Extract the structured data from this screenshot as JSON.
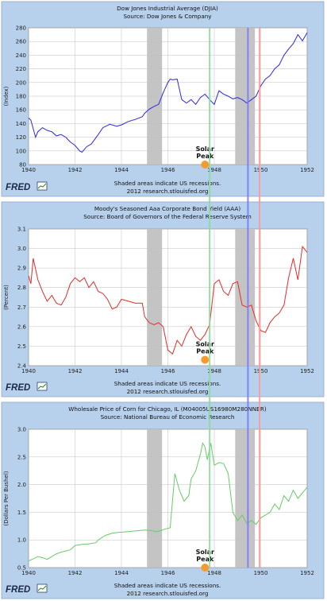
{
  "annotations": {
    "solar_peak_line1": "Solar",
    "solar_peak_line2": "Peak"
  },
  "colors": {
    "panel_background": "#b7d0ec",
    "recession_shading": "#c4c4c4",
    "djia_line": "#2a2ae6",
    "bond_line": "#e62a2a",
    "corn_line": "#66cc66",
    "green_vline": "#88dd99",
    "blue_vline": "#7a7aff",
    "red_vline": "#ff9a9a",
    "solar_dot": "#f59a2e"
  },
  "chart_data": [
    {
      "type": "line",
      "title": "Dow Jones Industrial Average (DJIA)",
      "subtitle": "Source: Dow Jones & Company",
      "ylabel": "(Index)",
      "xlabel": "",
      "xlim": [
        1940,
        1952
      ],
      "ylim": [
        80,
        280
      ],
      "x_ticks": [
        1940,
        1942,
        1944,
        1946,
        1948,
        1950,
        1952
      ],
      "y_ticks": [
        80,
        100,
        120,
        140,
        160,
        180,
        200,
        220,
        240,
        260,
        280
      ],
      "grid": true,
      "recessions": [
        [
          1945.1,
          1945.75
        ],
        [
          1948.9,
          1949.75
        ]
      ],
      "note_line1": "Shaded areas indicate US recessions.",
      "note_line2": "2012 research.stlouisfed.org",
      "solar_peak": {
        "x": 1947.6,
        "y": 80
      },
      "series": [
        {
          "x": [
            1940.0,
            1940.1,
            1940.3,
            1940.4,
            1940.6,
            1940.8,
            1941.0,
            1941.2,
            1941.4,
            1941.6,
            1941.8,
            1942.0,
            1942.2,
            1942.3,
            1942.5,
            1942.7,
            1943.0,
            1943.2,
            1943.5,
            1943.8,
            1944.0,
            1944.3,
            1944.6,
            1944.9,
            1945.0,
            1945.2,
            1945.4,
            1945.6,
            1945.8,
            1946.0,
            1946.1,
            1946.2,
            1946.4,
            1946.6,
            1946.8,
            1947.0,
            1947.2,
            1947.4,
            1947.6,
            1947.8,
            1948.0,
            1948.2,
            1948.4,
            1948.6,
            1948.8,
            1949.0,
            1949.2,
            1949.4,
            1949.6,
            1949.8,
            1950.0,
            1950.2,
            1950.4,
            1950.6,
            1950.8,
            1951.0,
            1951.2,
            1951.4,
            1951.6,
            1951.8,
            1952.0
          ],
          "values": [
            148,
            145,
            120,
            128,
            134,
            130,
            128,
            122,
            124,
            120,
            113,
            108,
            100,
            98,
            106,
            110,
            124,
            134,
            139,
            136,
            138,
            143,
            146,
            150,
            155,
            161,
            165,
            168,
            185,
            200,
            205,
            204,
            205,
            175,
            170,
            175,
            168,
            178,
            183,
            175,
            168,
            188,
            183,
            180,
            176,
            178,
            175,
            170,
            175,
            180,
            195,
            205,
            210,
            220,
            226,
            240,
            249,
            257,
            270,
            261,
            273
          ]
        }
      ]
    },
    {
      "type": "line",
      "title": "Moody's Seasoned Aaa Corporate Bond Yield (AAA)",
      "subtitle": "Source: Board of Governors of the Federal Reserve System",
      "ylabel": "(Percent)",
      "xlabel": "",
      "xlim": [
        1940,
        1952
      ],
      "ylim": [
        2.4,
        3.1
      ],
      "x_ticks": [
        1940,
        1942,
        1944,
        1946,
        1948,
        1950,
        1952
      ],
      "y_ticks": [
        2.4,
        2.5,
        2.6,
        2.7,
        2.8,
        2.9,
        3.0,
        3.1
      ],
      "grid": true,
      "recessions": [
        [
          1945.1,
          1945.75
        ],
        [
          1948.9,
          1949.75
        ]
      ],
      "note_line1": "Shaded areas indicate US recessions.",
      "note_line2": "2012 research.stlouisfed.org",
      "solar_peak": {
        "x": 1947.6,
        "y": 2.43
      },
      "series": [
        {
          "x": [
            1940.0,
            1940.1,
            1940.2,
            1940.4,
            1940.6,
            1940.8,
            1941.0,
            1941.2,
            1941.4,
            1941.6,
            1941.8,
            1942.0,
            1942.2,
            1942.4,
            1942.6,
            1942.8,
            1943.0,
            1943.2,
            1943.4,
            1943.6,
            1943.8,
            1944.0,
            1944.3,
            1944.6,
            1944.9,
            1945.0,
            1945.2,
            1945.4,
            1945.6,
            1945.8,
            1946.0,
            1946.2,
            1946.4,
            1946.6,
            1946.8,
            1947.0,
            1947.2,
            1947.4,
            1947.6,
            1947.8,
            1948.0,
            1948.2,
            1948.4,
            1948.6,
            1948.8,
            1949.0,
            1949.2,
            1949.4,
            1949.6,
            1949.8,
            1950.0,
            1950.2,
            1950.4,
            1950.6,
            1950.8,
            1951.0,
            1951.2,
            1951.4,
            1951.6,
            1951.8,
            1952.0
          ],
          "values": [
            2.86,
            2.82,
            2.95,
            2.84,
            2.78,
            2.73,
            2.76,
            2.72,
            2.71,
            2.75,
            2.82,
            2.85,
            2.83,
            2.85,
            2.8,
            2.83,
            2.78,
            2.77,
            2.74,
            2.69,
            2.7,
            2.74,
            2.73,
            2.72,
            2.72,
            2.65,
            2.62,
            2.61,
            2.62,
            2.6,
            2.48,
            2.46,
            2.53,
            2.5,
            2.56,
            2.6,
            2.55,
            2.53,
            2.56,
            2.61,
            2.82,
            2.84,
            2.78,
            2.76,
            2.82,
            2.83,
            2.71,
            2.7,
            2.71,
            2.63,
            2.58,
            2.57,
            2.62,
            2.65,
            2.67,
            2.71,
            2.85,
            2.95,
            2.84,
            3.01,
            2.98
          ]
        }
      ]
    },
    {
      "type": "line",
      "title": "Wholesale Price of Corn for Chicago, IL (M04005US16980M280NNBR)",
      "subtitle": "Source: National Bureau of Economic Research",
      "ylabel": "(Dollars Per Bushel)",
      "xlabel": "",
      "xlim": [
        1940,
        1952
      ],
      "ylim": [
        0.5,
        3.0
      ],
      "x_ticks": [
        1940,
        1942,
        1944,
        1946,
        1948,
        1950,
        1952
      ],
      "y_ticks": [
        0.5,
        1.0,
        1.5,
        2.0,
        2.5,
        3.0
      ],
      "grid": true,
      "recessions": [
        [
          1945.1,
          1945.75
        ],
        [
          1948.9,
          1949.75
        ]
      ],
      "note_line1": "Shaded areas indicate US recessions.",
      "note_line2": "2012 research.stlouisfed.org",
      "solar_peak": {
        "x": 1947.6,
        "y": 0.5
      },
      "series": [
        {
          "x": [
            1940.0,
            1940.2,
            1940.4,
            1940.6,
            1940.8,
            1941.0,
            1941.2,
            1941.4,
            1941.6,
            1941.8,
            1942.0,
            1942.3,
            1942.6,
            1942.9,
            1943.0,
            1943.3,
            1943.6,
            1943.9,
            1944.0,
            1944.5,
            1945.0,
            1945.3,
            1945.5,
            1945.7,
            1945.9,
            1946.1,
            1946.3,
            1946.5,
            1946.7,
            1946.9,
            1947.0,
            1947.2,
            1947.4,
            1947.5,
            1947.6,
            1947.7,
            1947.85,
            1948.0,
            1948.2,
            1948.4,
            1948.6,
            1948.8,
            1949.0,
            1949.2,
            1949.4,
            1949.6,
            1949.8,
            1950.0,
            1950.2,
            1950.4,
            1950.6,
            1950.8,
            1951.0,
            1951.2,
            1951.4,
            1951.6,
            1951.8,
            1952.0
          ],
          "values": [
            0.62,
            0.66,
            0.7,
            0.68,
            0.65,
            0.7,
            0.75,
            0.78,
            0.8,
            0.82,
            0.9,
            0.92,
            0.93,
            0.95,
            1.0,
            1.08,
            1.12,
            1.14,
            1.14,
            1.16,
            1.18,
            1.17,
            1.15,
            1.17,
            1.2,
            1.22,
            2.2,
            1.9,
            1.7,
            1.8,
            2.1,
            2.25,
            2.55,
            2.75,
            2.68,
            2.45,
            2.75,
            2.35,
            2.4,
            2.38,
            2.2,
            1.5,
            1.35,
            1.45,
            1.3,
            1.35,
            1.28,
            1.4,
            1.45,
            1.5,
            1.65,
            1.55,
            1.8,
            1.7,
            1.9,
            1.75,
            1.85,
            1.95
          ]
        }
      ]
    }
  ]
}
